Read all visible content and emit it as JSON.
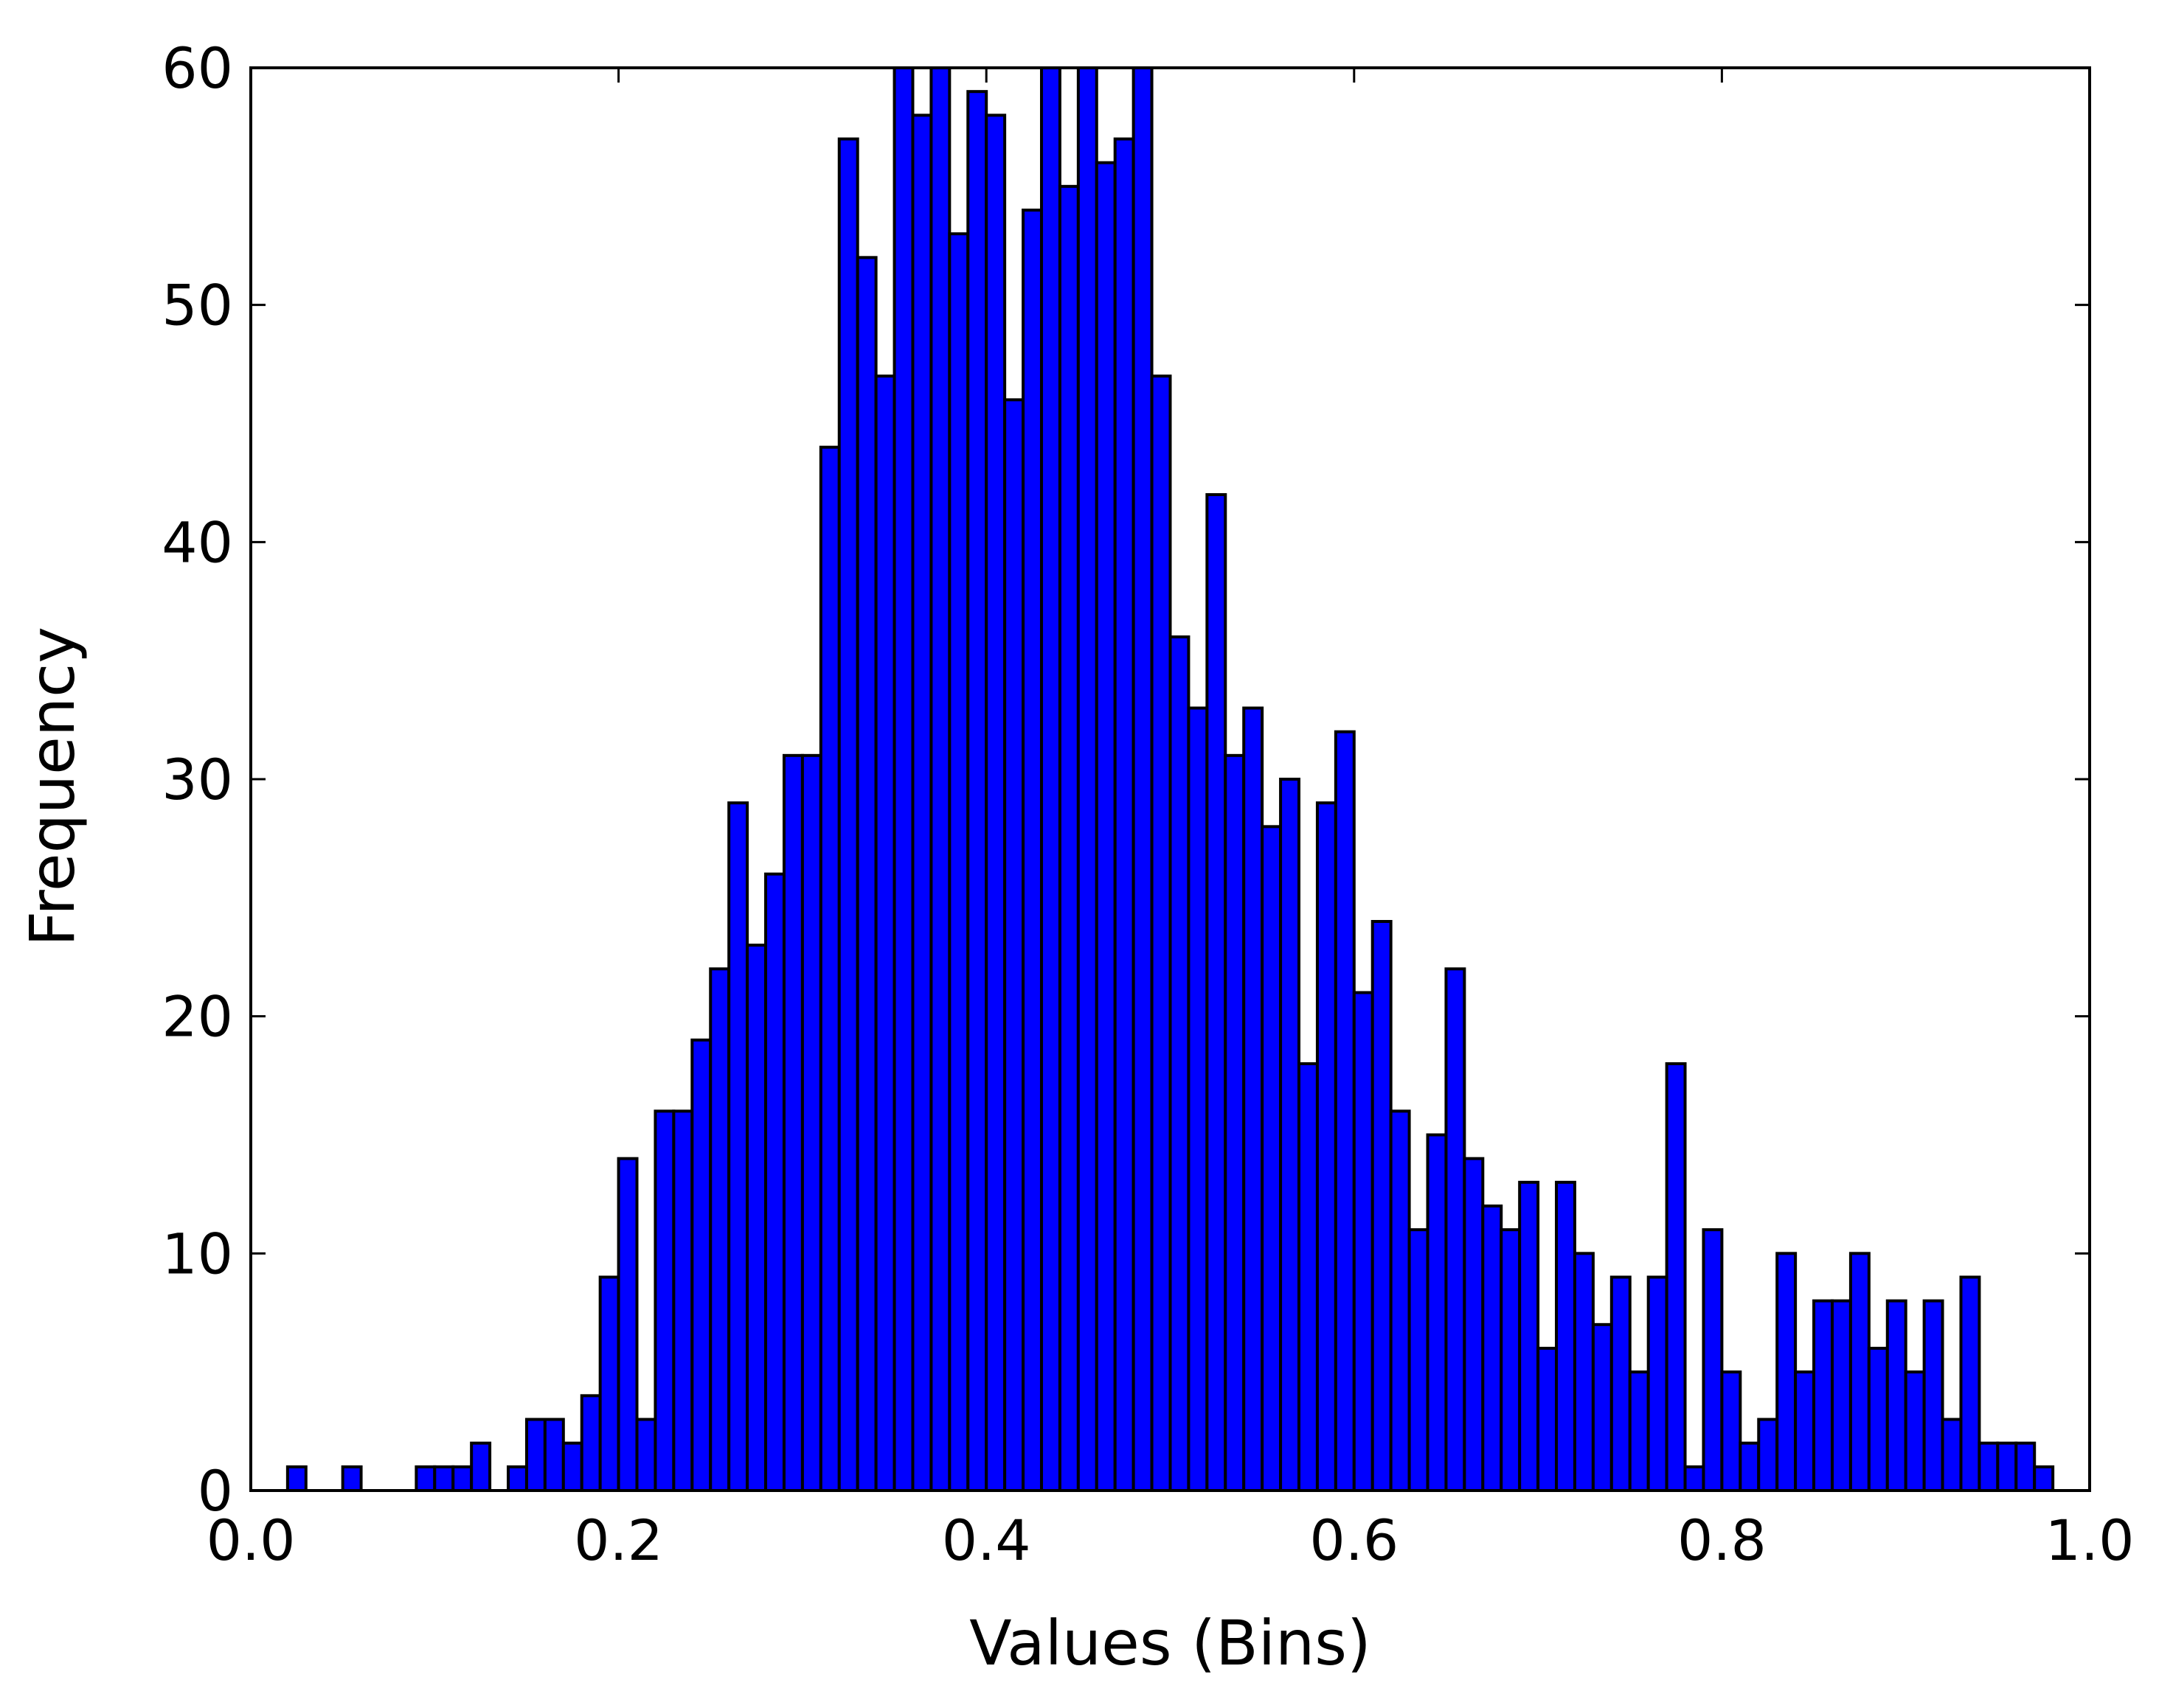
{
  "chart_data": {
    "type": "bar",
    "subtype": "histogram",
    "title": "",
    "xlabel": "Values (Bins)",
    "ylabel": "Frequency",
    "xlim": [
      0.0,
      1.0
    ],
    "ylim": [
      0,
      60
    ],
    "grid": false,
    "legend": "none",
    "bar_color": "#0000ff",
    "edge_color": "#000000",
    "xticks": [
      "0.0",
      "0.2",
      "0.4",
      "0.6",
      "0.8",
      "1.0"
    ],
    "yticks": [
      "0",
      "10",
      "20",
      "30",
      "40",
      "50",
      "60"
    ],
    "bin_start": 0.0,
    "bin_width": 0.01,
    "values": [
      0,
      0,
      1,
      0,
      0,
      1,
      0,
      0,
      0,
      1,
      1,
      1,
      2,
      0,
      1,
      3,
      3,
      2,
      4,
      9,
      14,
      3,
      16,
      16,
      19,
      22,
      29,
      23,
      26,
      31,
      31,
      44,
      57,
      52,
      47,
      60,
      58,
      60,
      53,
      59,
      58,
      46,
      54,
      60,
      55,
      60,
      56,
      57,
      60,
      47,
      36,
      33,
      42,
      31,
      33,
      28,
      30,
      18,
      29,
      32,
      21,
      24,
      16,
      11,
      15,
      22,
      14,
      12,
      11,
      13,
      6,
      13,
      10,
      7,
      9,
      5,
      9,
      18,
      1,
      11,
      5,
      2,
      3,
      10,
      5,
      8,
      8,
      10,
      6,
      8,
      5,
      8,
      3,
      9,
      2,
      2,
      2,
      1,
      0,
      0
    ]
  }
}
